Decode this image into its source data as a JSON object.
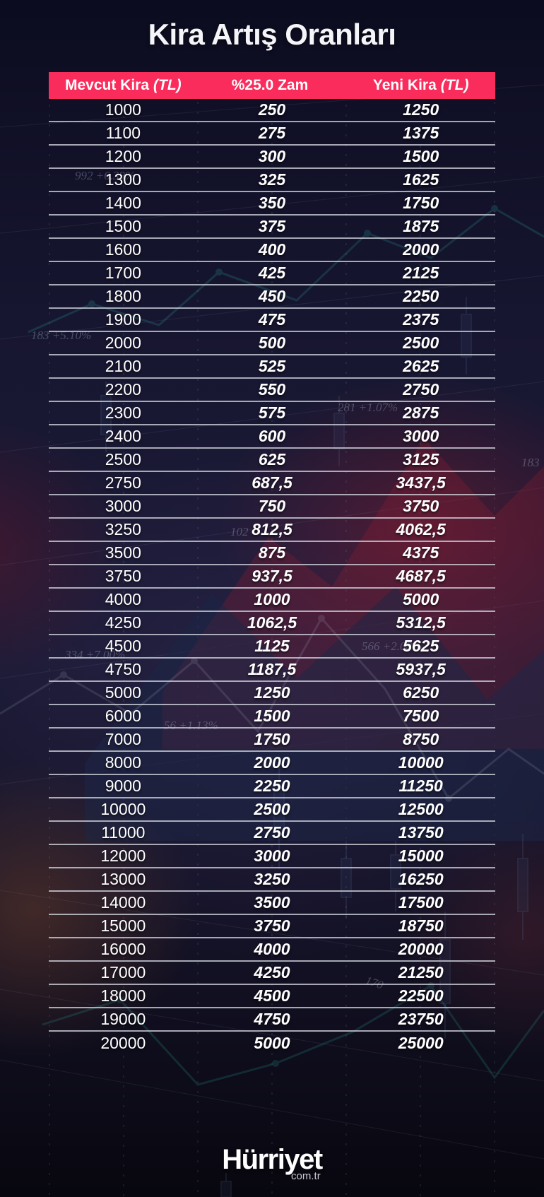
{
  "title": "Kira Artış Oranları",
  "table": {
    "headers": [
      {
        "label": "Mevcut Kira",
        "suffix": "(TL)"
      },
      {
        "label": "%25.0 Zam",
        "suffix": ""
      },
      {
        "label": "Yeni Kira",
        "suffix": "(TL)"
      }
    ]
  },
  "chart_data": {
    "type": "table",
    "title": "Kira Artış Oranları",
    "columns": [
      "Mevcut Kira (TL)",
      "%25.0 Zam",
      "Yeni Kira (TL)"
    ],
    "increase_percent": 25.0,
    "decimal_separator": ",",
    "rows": [
      [
        1000,
        250,
        1250
      ],
      [
        1100,
        275,
        1375
      ],
      [
        1200,
        300,
        1500
      ],
      [
        1300,
        325,
        1625
      ],
      [
        1400,
        350,
        1750
      ],
      [
        1500,
        375,
        1875
      ],
      [
        1600,
        400,
        2000
      ],
      [
        1700,
        425,
        2125
      ],
      [
        1800,
        450,
        2250
      ],
      [
        1900,
        475,
        2375
      ],
      [
        2000,
        500,
        2500
      ],
      [
        2100,
        525,
        2625
      ],
      [
        2200,
        550,
        2750
      ],
      [
        2300,
        575,
        2875
      ],
      [
        2400,
        600,
        3000
      ],
      [
        2500,
        625,
        3125
      ],
      [
        2750,
        687.5,
        3437.5
      ],
      [
        3000,
        750,
        3750
      ],
      [
        3250,
        812.5,
        4062.5
      ],
      [
        3500,
        875,
        4375
      ],
      [
        3750,
        937.5,
        4687.5
      ],
      [
        4000,
        1000,
        5000
      ],
      [
        4250,
        1062.5,
        5312.5
      ],
      [
        4500,
        1125,
        5625
      ],
      [
        4750,
        1187.5,
        5937.5
      ],
      [
        5000,
        1250,
        6250
      ],
      [
        6000,
        1500,
        7500
      ],
      [
        7000,
        1750,
        8750
      ],
      [
        8000,
        2000,
        10000
      ],
      [
        9000,
        2250,
        11250
      ],
      [
        10000,
        2500,
        12500
      ],
      [
        11000,
        2750,
        13750
      ],
      [
        12000,
        3000,
        15000
      ],
      [
        13000,
        3250,
        16250
      ],
      [
        14000,
        3500,
        17500
      ],
      [
        15000,
        3750,
        18750
      ],
      [
        16000,
        4000,
        20000
      ],
      [
        17000,
        4250,
        21250
      ],
      [
        18000,
        4500,
        22500
      ],
      [
        19000,
        4750,
        23750
      ],
      [
        20000,
        5000,
        25000
      ]
    ]
  },
  "footer": {
    "logo": "Hürriyet",
    "logo_sub": "com.tr"
  },
  "background": {
    "tickers": [
      "992 +6.39%",
      "183 +5.10%",
      "281 +1.07%",
      "183",
      "102",
      "334 +7.00%",
      "566 +2.08%",
      "56 +1.13%",
      "170"
    ]
  },
  "colors": {
    "header_bg": "#f92c5c",
    "row_divider": "#d0d3dd",
    "background_navy": "#15142a",
    "text": "#ffffff",
    "accent_teal": "#2fd4c0",
    "glow_red": "#981c30",
    "glow_orange": "#965228"
  }
}
